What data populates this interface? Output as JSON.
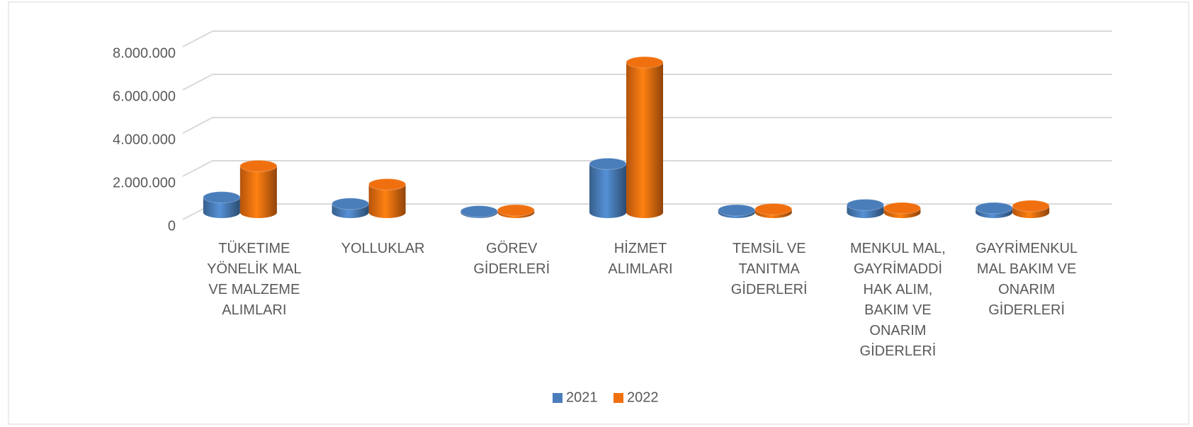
{
  "chart_data": {
    "type": "bar3d",
    "categories": [
      "TÜKETIME YÖNELİK MAL VE MALZEME ALIMLARI",
      "YOLLUKLAR",
      "GÖREV GİDERLERİ",
      "HİZMET ALIMLARI",
      "TEMSİL VE TANITMA GİDERLERİ",
      "MENKUL MAL, GAYRİMADDİ HAK ALIM, BAKIM VE ONARIM GİDERLERİ",
      "GAYRİMENKUL MAL BAKIM VE ONARIM GİDERLERİ"
    ],
    "series": [
      {
        "name": "2021",
        "color": "#4a7ebb",
        "values": [
          700000,
          400000,
          50000,
          2250000,
          100000,
          350000,
          200000
        ]
      },
      {
        "name": "2022",
        "color": "#f07010",
        "values": [
          2150000,
          1300000,
          100000,
          6950000,
          150000,
          200000,
          300000
        ]
      }
    ],
    "ylim": [
      0,
      8000000
    ],
    "yticks": [
      0,
      {
        "value": 2000000,
        "label": "2.000.000"
      },
      {
        "value": 4000000,
        "label": "4.000.000"
      },
      {
        "value": 6000000,
        "label": "6.000.000"
      },
      {
        "value": 8000000,
        "label": "8.000.000"
      }
    ],
    "grid": true,
    "legend": "bottom"
  }
}
